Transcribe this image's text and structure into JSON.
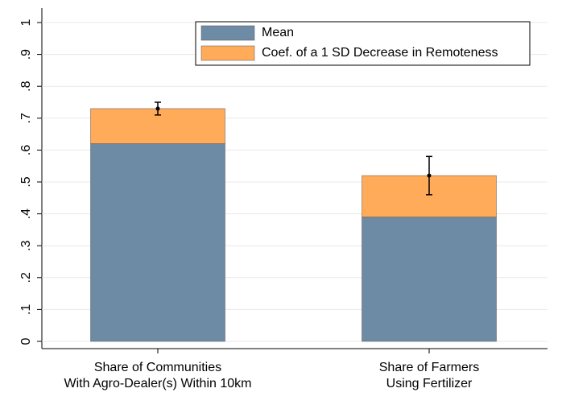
{
  "chart_data": {
    "type": "stacked_bar",
    "categories": [
      [
        "Share of Communities",
        "With Agro-Dealer(s) Within 10km"
      ],
      [
        "Share of Farmers",
        "Using Fertilizer"
      ]
    ],
    "series": [
      {
        "name": "Mean",
        "color": "#6e8ba5",
        "values": [
          0.62,
          0.39
        ]
      },
      {
        "name": "Coef. of a 1 SD Decrease in Remoteness",
        "color": "#ffab59",
        "values": [
          0.11,
          0.13
        ],
        "errors": [
          0.02,
          0.06
        ]
      }
    ],
    "ylim": [
      0,
      1
    ],
    "yticks": [
      0,
      {
        "value": 0.1,
        "label": ".1"
      },
      {
        "value": 0.2,
        "label": ".2"
      },
      {
        "value": 0.3,
        "label": ".3"
      },
      {
        "value": 0.4,
        "label": ".4"
      },
      {
        "value": 0.5,
        "label": ".5"
      },
      {
        "value": 0.6,
        "label": ".6"
      },
      {
        "value": 0.7,
        "label": ".7"
      },
      {
        "value": 0.8,
        "label": ".8"
      },
      {
        "value": 0.9,
        "label": ".9"
      },
      1
    ],
    "grid": true,
    "legend": "top-right"
  }
}
